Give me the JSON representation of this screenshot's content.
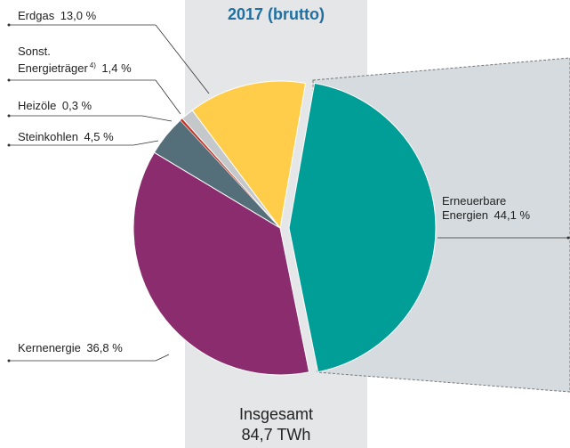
{
  "chart_data": {
    "type": "pie",
    "title": "2017 (brutto)",
    "categories": [
      "Erneuerbare\nEnergien",
      "Kernenergie",
      "Steinkohlen",
      "Heizöle",
      "Sonst.\nEnergieträger",
      "Erdgas"
    ],
    "category_notes": [
      null,
      null,
      null,
      null,
      "4)",
      null
    ],
    "values": [
      44.1,
      36.8,
      4.5,
      0.3,
      1.4,
      13.0
    ],
    "value_labels": [
      "44,1 %",
      "36,8 %",
      "4,5 %",
      "0,3 %",
      "1,4 %",
      "13,0 %"
    ],
    "colors": [
      "#009e96",
      "#8b2c6e",
      "#546e7a",
      "#c0392b",
      "#c5c8ca",
      "#ffcd4a"
    ],
    "total_label": "Insgesamt",
    "total_value": "84,7 TWh"
  }
}
